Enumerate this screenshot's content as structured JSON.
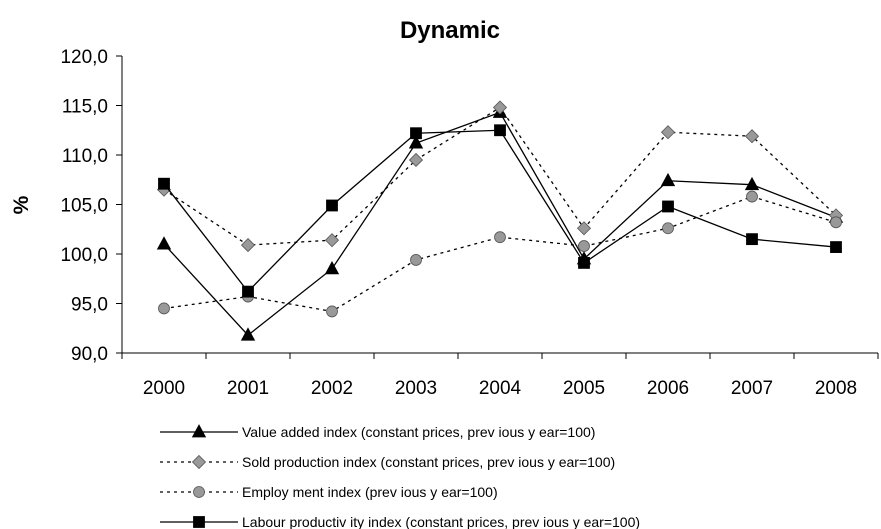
{
  "chart_data": {
    "type": "line",
    "title": "Dynamic",
    "xlabel": "",
    "ylabel": "%",
    "categories": [
      "2000",
      "2001",
      "2002",
      "2003",
      "2004",
      "2005",
      "2006",
      "2007",
      "2008"
    ],
    "ylim": [
      90,
      120
    ],
    "yticks": [
      "90,0",
      "95,0",
      "100,0",
      "105,0",
      "110,0",
      "115,0",
      "120,0"
    ],
    "ytick_values": [
      90,
      95,
      100,
      105,
      110,
      115,
      120
    ],
    "grid": false,
    "legend_position": "bottom",
    "series": [
      {
        "name": "Value added index (constant prices, prev ious y ear=100)",
        "values": [
          101.0,
          91.8,
          98.5,
          111.2,
          114.3,
          99.5,
          107.4,
          107.0,
          103.7
        ],
        "line_style": "solid",
        "marker": "triangle",
        "marker_color": "#000000"
      },
      {
        "name": "Sold production index (constant prices, prev ious y ear=100)",
        "values": [
          106.5,
          100.9,
          101.4,
          109.5,
          114.8,
          102.6,
          112.3,
          111.9,
          103.9
        ],
        "line_style": "dotted",
        "marker": "diamond",
        "marker_color": "#999999"
      },
      {
        "name": "Employ ment index (prev ious y ear=100)",
        "values": [
          94.5,
          95.7,
          94.2,
          99.4,
          101.7,
          100.8,
          102.6,
          105.8,
          103.2
        ],
        "line_style": "dotted",
        "marker": "circle",
        "marker_color": "#999999"
      },
      {
        "name": "Labour productiv ity index (constant prices, prev ious y ear=100)",
        "values": [
          107.1,
          96.2,
          104.9,
          112.2,
          112.5,
          99.1,
          104.8,
          101.5,
          100.7
        ],
        "line_style": "solid",
        "marker": "square",
        "marker_color": "#000000"
      }
    ]
  }
}
